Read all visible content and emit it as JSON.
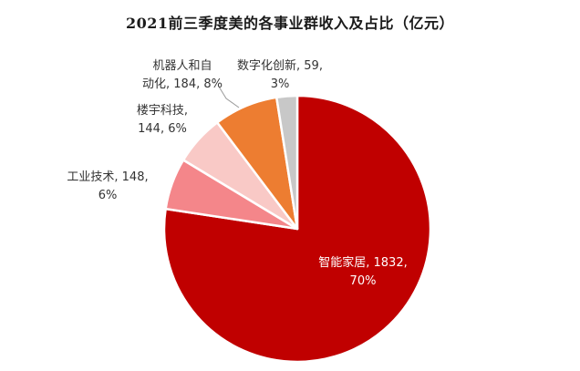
{
  "chart_data": {
    "type": "pie",
    "title": "2021前三季度美的各事业群收入及占比（亿元）",
    "start_angle_deg": 0,
    "slices": [
      {
        "label": "智能家居",
        "value": 1832,
        "percent": "70%",
        "color": "#c00000",
        "label_lines": [
          "智能家居, 1832,",
          "70%"
        ]
      },
      {
        "label": "工业技术",
        "value": 148,
        "percent": "6%",
        "color": "#f4868a",
        "label_lines": [
          "工业技术, 148,",
          "6%"
        ]
      },
      {
        "label": "楼宇科技",
        "value": 144,
        "percent": "6%",
        "color": "#f9c9c6",
        "label_lines": [
          "楼宇科技,",
          "144, 6%"
        ]
      },
      {
        "label": "机器人和自动化",
        "value": 184,
        "percent": "8%",
        "color": "#ed7d31",
        "label_lines": [
          "机器人和自",
          "动化, 184, 8%"
        ]
      },
      {
        "label": "数字化创新",
        "value": 59,
        "percent": "3%",
        "color": "#c8c8c8",
        "label_lines": [
          "数字化创新, 59,",
          "3%"
        ]
      }
    ]
  }
}
